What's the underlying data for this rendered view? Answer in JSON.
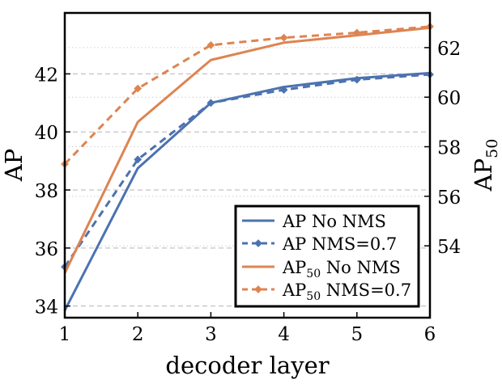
{
  "chart_data": {
    "type": "line",
    "title": "",
    "xlabel": "decoder layer",
    "ylabel_left": "AP",
    "ylabel_right": {
      "base": "AP",
      "sub": "50"
    },
    "x": [
      1,
      2,
      3,
      4,
      5,
      6
    ],
    "x_ticks": [
      "1",
      "2",
      "3",
      "4",
      "5",
      "6"
    ],
    "xlim": [
      1,
      6
    ],
    "ylim_left": [
      33.6,
      44.1
    ],
    "ylim_right": [
      51.1,
      63.4
    ],
    "left_ticks": [
      34,
      36,
      38,
      40,
      42
    ],
    "left_tick_labels": [
      "34",
      "36",
      "38",
      "40",
      "42"
    ],
    "right_ticks": [
      54,
      56,
      58,
      60,
      62
    ],
    "right_tick_labels": [
      "54",
      "56",
      "58",
      "60",
      "62"
    ],
    "grid": "dashed horizontal",
    "legend_position": "bottom-right",
    "series": [
      {
        "name": "AP No NMS",
        "label_base": "AP",
        "label_sub": "",
        "label_rest": " No NMS",
        "axis": "left",
        "color": "#4c72b0",
        "style": "solid",
        "marker": false,
        "values": [
          33.85,
          38.75,
          41.0,
          41.55,
          41.85,
          42.03
        ]
      },
      {
        "name": "AP NMS=0.7",
        "label_base": "AP",
        "label_sub": "",
        "label_rest": " NMS=0.7",
        "axis": "left",
        "color": "#4c72b0",
        "style": "dashed",
        "marker": true,
        "values": [
          35.35,
          39.05,
          41.0,
          41.45,
          41.8,
          41.98
        ]
      },
      {
        "name": "AP50 No NMS",
        "label_base": "AP",
        "label_sub": "50",
        "label_rest": " No NMS",
        "axis": "right",
        "color": "#dd8452",
        "style": "solid",
        "marker": false,
        "values": [
          52.9,
          59.0,
          61.5,
          62.2,
          62.5,
          62.8
        ]
      },
      {
        "name": "AP50 NMS=0.7",
        "label_base": "AP",
        "label_sub": "50",
        "label_rest": " NMS=0.7",
        "axis": "right",
        "color": "#dd8452",
        "style": "dashed",
        "marker": true,
        "values": [
          57.3,
          60.35,
          62.1,
          62.4,
          62.6,
          62.85
        ]
      }
    ]
  }
}
